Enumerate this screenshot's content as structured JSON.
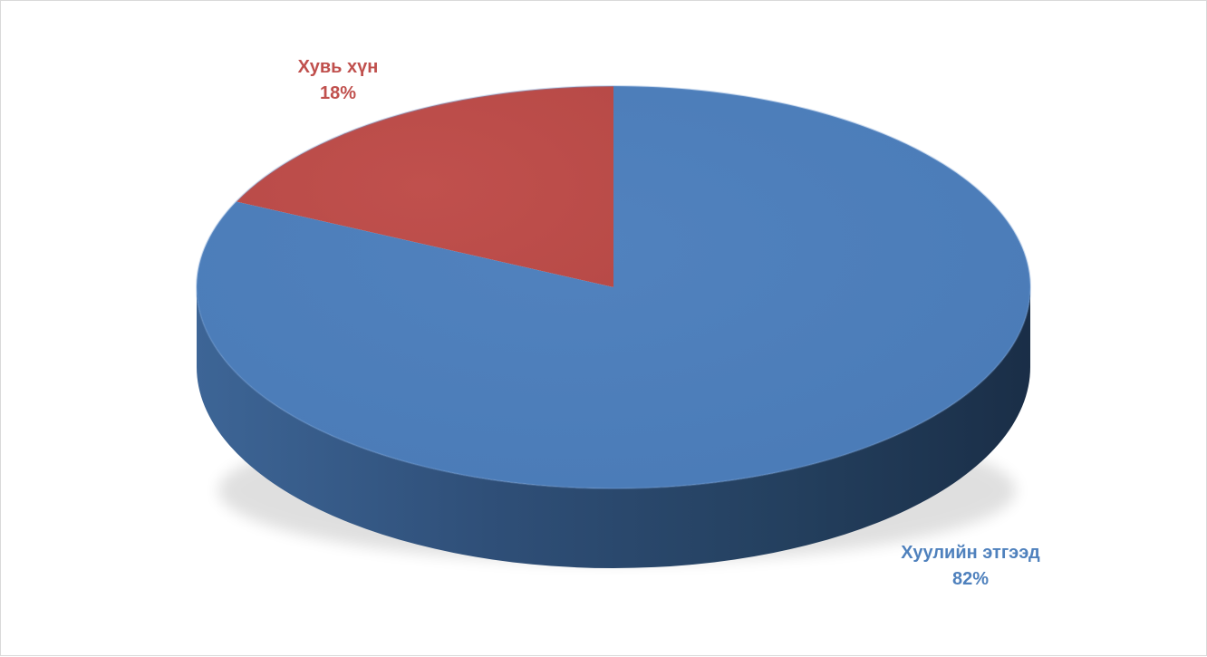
{
  "chart_data": {
    "type": "pie",
    "style": "3d",
    "categories": [
      "Хувь хүн",
      "Хуулийн этгээд"
    ],
    "values": [
      18,
      82
    ],
    "labels": [
      {
        "name": "Хувь хүн",
        "percent": "18%",
        "color": "#C0504D"
      },
      {
        "name": "Хуулийн этгээд",
        "percent": "82%",
        "color": "#4F81BD"
      }
    ],
    "title": "",
    "legend": "none"
  },
  "colors": {
    "series_1": "#C0504D",
    "series_2": "#4F81BD",
    "series_2_side_dark": "#1F3656",
    "series_1_side_dark": "#7A2F2D"
  }
}
